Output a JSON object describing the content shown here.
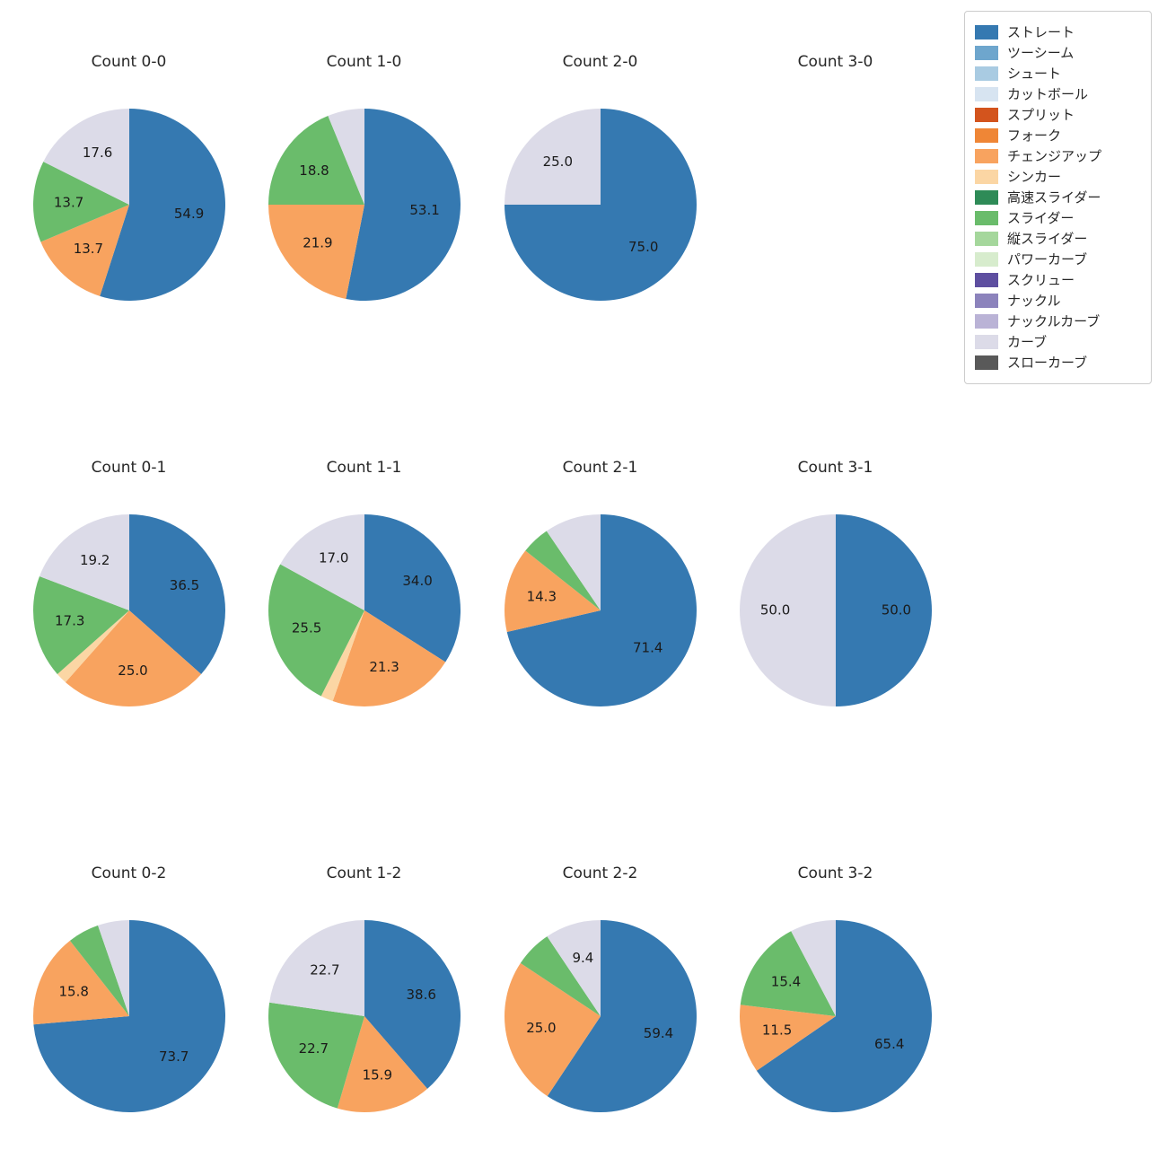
{
  "chart_data": {
    "type": "pie",
    "layout": {
      "rows": 3,
      "cols": 4,
      "start_angle_deg": 90,
      "direction": "clockwise",
      "radius_px": 107,
      "label_radius_frac": 0.63,
      "legend_position": "upper right"
    },
    "legend": {
      "items": [
        {
          "label": "ストレート",
          "color": "#3579b1"
        },
        {
          "label": "ツーシーム",
          "color": "#6ea6cd"
        },
        {
          "label": "シュート",
          "color": "#a9cbe2"
        },
        {
          "label": "カットボール",
          "color": "#d7e4f1"
        },
        {
          "label": "スプリット",
          "color": "#d3541d"
        },
        {
          "label": "フォーク",
          "color": "#ef8636"
        },
        {
          "label": "チェンジアップ",
          "color": "#f8a35f"
        },
        {
          "label": "シンカー",
          "color": "#fbd6a4"
        },
        {
          "label": "高速スライダー",
          "color": "#2e8b57"
        },
        {
          "label": "スライダー",
          "color": "#6abc6b"
        },
        {
          "label": "縦スライダー",
          "color": "#a5d79c"
        },
        {
          "label": "パワーカーブ",
          "color": "#d7eccd"
        },
        {
          "label": "スクリュー",
          "color": "#5e4fa0"
        },
        {
          "label": "ナックル",
          "color": "#8c83bc"
        },
        {
          "label": "ナックルカーブ",
          "color": "#bab3d6"
        },
        {
          "label": "カーブ",
          "color": "#dcdbe8"
        },
        {
          "label": "スローカーブ",
          "color": "#595959"
        }
      ]
    },
    "charts": [
      {
        "title": "Count 0-0",
        "slices": [
          {
            "name": "ストレート",
            "value": 54.9,
            "label": "54.9"
          },
          {
            "name": "チェンジアップ",
            "value": 13.7,
            "label": "13.7"
          },
          {
            "name": "スライダー",
            "value": 13.7,
            "label": "13.7"
          },
          {
            "name": "カーブ",
            "value": 17.6,
            "label": "17.6"
          }
        ]
      },
      {
        "title": "Count 1-0",
        "slices": [
          {
            "name": "ストレート",
            "value": 53.1,
            "label": "53.1"
          },
          {
            "name": "チェンジアップ",
            "value": 21.9,
            "label": "21.9"
          },
          {
            "name": "スライダー",
            "value": 18.8,
            "label": "18.8"
          },
          {
            "name": "カーブ",
            "value": 6.2,
            "label": null
          }
        ]
      },
      {
        "title": "Count 2-0",
        "slices": [
          {
            "name": "ストレート",
            "value": 75.0,
            "label": "75.0"
          },
          {
            "name": "カーブ",
            "value": 25.0,
            "label": "25.0"
          }
        ]
      },
      {
        "title": "Count 3-0",
        "slices": []
      },
      {
        "title": "Count 0-1",
        "slices": [
          {
            "name": "ストレート",
            "value": 36.5,
            "label": "36.5"
          },
          {
            "name": "チェンジアップ",
            "value": 25.0,
            "label": "25.0"
          },
          {
            "name": "シンカー",
            "value": 1.9,
            "label": null
          },
          {
            "name": "スライダー",
            "value": 17.3,
            "label": "17.3"
          },
          {
            "name": "カーブ",
            "value": 19.2,
            "label": "19.2"
          }
        ]
      },
      {
        "title": "Count 1-1",
        "slices": [
          {
            "name": "ストレート",
            "value": 34.0,
            "label": "34.0"
          },
          {
            "name": "チェンジアップ",
            "value": 21.3,
            "label": "21.3"
          },
          {
            "name": "シンカー",
            "value": 2.1,
            "label": null
          },
          {
            "name": "スライダー",
            "value": 25.5,
            "label": "25.5"
          },
          {
            "name": "カーブ",
            "value": 17.0,
            "label": "17.0"
          }
        ]
      },
      {
        "title": "Count 2-1",
        "slices": [
          {
            "name": "ストレート",
            "value": 71.4,
            "label": "71.4"
          },
          {
            "name": "チェンジアップ",
            "value": 14.3,
            "label": "14.3"
          },
          {
            "name": "スライダー",
            "value": 4.8,
            "label": null
          },
          {
            "name": "カーブ",
            "value": 9.5,
            "label": null
          }
        ]
      },
      {
        "title": "Count 3-1",
        "slices": [
          {
            "name": "ストレート",
            "value": 50.0,
            "label": "50.0"
          },
          {
            "name": "カーブ",
            "value": 50.0,
            "label": "50.0"
          }
        ]
      },
      {
        "title": "Count 0-2",
        "slices": [
          {
            "name": "ストレート",
            "value": 73.7,
            "label": "73.7"
          },
          {
            "name": "チェンジアップ",
            "value": 15.8,
            "label": "15.8"
          },
          {
            "name": "スライダー",
            "value": 5.3,
            "label": null
          },
          {
            "name": "カーブ",
            "value": 5.3,
            "label": null
          }
        ]
      },
      {
        "title": "Count 1-2",
        "slices": [
          {
            "name": "ストレート",
            "value": 38.6,
            "label": "38.6"
          },
          {
            "name": "チェンジアップ",
            "value": 15.9,
            "label": "15.9"
          },
          {
            "name": "スライダー",
            "value": 22.7,
            "label": "22.7"
          },
          {
            "name": "カーブ",
            "value": 22.7,
            "label": "22.7"
          }
        ]
      },
      {
        "title": "Count 2-2",
        "slices": [
          {
            "name": "ストレート",
            "value": 59.4,
            "label": "59.4"
          },
          {
            "name": "チェンジアップ",
            "value": 25.0,
            "label": "25.0"
          },
          {
            "name": "スライダー",
            "value": 6.3,
            "label": null
          },
          {
            "name": "カーブ",
            "value": 9.4,
            "label": "9.4"
          }
        ]
      },
      {
        "title": "Count 3-2",
        "slices": [
          {
            "name": "ストレート",
            "value": 65.4,
            "label": "65.4"
          },
          {
            "name": "チェンジアップ",
            "value": 11.5,
            "label": "11.5"
          },
          {
            "name": "スライダー",
            "value": 15.4,
            "label": "15.4"
          },
          {
            "name": "カーブ",
            "value": 7.7,
            "label": null
          }
        ]
      }
    ]
  }
}
